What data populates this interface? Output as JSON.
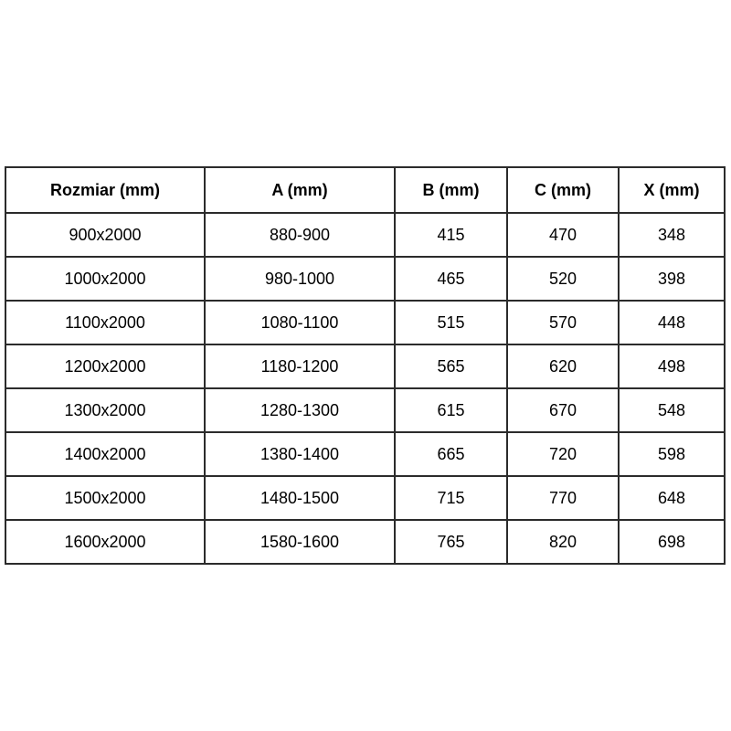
{
  "table": {
    "name": "shower-door-size-specification",
    "border_color": "#2b2b2b",
    "text_color": "#000000",
    "background_color": "#ffffff",
    "columns": [
      "Rozmiar (mm)",
      "A (mm)",
      "B (mm)",
      "C (mm)",
      "X (mm)"
    ],
    "rows": [
      [
        "900x2000",
        "880-900",
        "415",
        "470",
        "348"
      ],
      [
        "1000x2000",
        "980-1000",
        "465",
        "520",
        "398"
      ],
      [
        "1100x2000",
        "1080-1100",
        "515",
        "570",
        "448"
      ],
      [
        "1200x2000",
        "1180-1200",
        "565",
        "620",
        "498"
      ],
      [
        "1300x2000",
        "1280-1300",
        "615",
        "670",
        "548"
      ],
      [
        "1400x2000",
        "1380-1400",
        "665",
        "720",
        "598"
      ],
      [
        "1500x2000",
        "1480-1500",
        "715",
        "770",
        "648"
      ],
      [
        "1600x2000",
        "1580-1600",
        "765",
        "820",
        "698"
      ]
    ]
  }
}
